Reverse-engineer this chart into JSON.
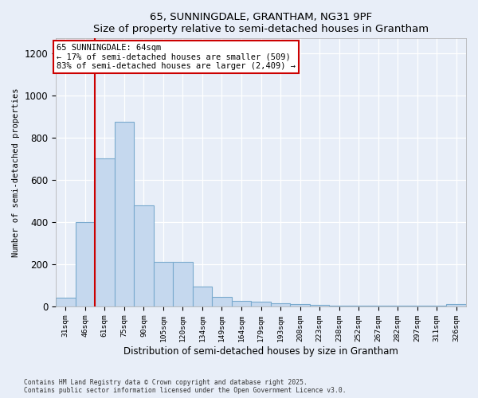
{
  "title1": "65, SUNNINGDALE, GRANTHAM, NG31 9PF",
  "title2": "Size of property relative to semi-detached houses in Grantham",
  "xlabel": "Distribution of semi-detached houses by size in Grantham",
  "ylabel": "Number of semi-detached properties",
  "categories": [
    "31sqm",
    "46sqm",
    "61sqm",
    "75sqm",
    "90sqm",
    "105sqm",
    "120sqm",
    "134sqm",
    "149sqm",
    "164sqm",
    "179sqm",
    "193sqm",
    "208sqm",
    "223sqm",
    "238sqm",
    "252sqm",
    "267sqm",
    "282sqm",
    "297sqm",
    "311sqm",
    "326sqm"
  ],
  "values": [
    40,
    400,
    700,
    875,
    480,
    210,
    210,
    95,
    45,
    25,
    20,
    15,
    10,
    5,
    2,
    2,
    1,
    1,
    1,
    1,
    10
  ],
  "bar_color": "#c5d8ee",
  "bar_edgecolor": "#7aaace",
  "vline_x": 1.5,
  "vline_color": "#cc0000",
  "annotation_title": "65 SUNNINGDALE: 64sqm",
  "annotation_line1": "← 17% of semi-detached houses are smaller (509)",
  "annotation_line2": "83% of semi-detached houses are larger (2,409) →",
  "annotation_box_edgecolor": "#cc0000",
  "ylim": [
    0,
    1270
  ],
  "yticks": [
    0,
    200,
    400,
    600,
    800,
    1000,
    1200
  ],
  "bg_color": "#e8eef8",
  "footer1": "Contains HM Land Registry data © Crown copyright and database right 2025.",
  "footer2": "Contains public sector information licensed under the Open Government Licence v3.0."
}
